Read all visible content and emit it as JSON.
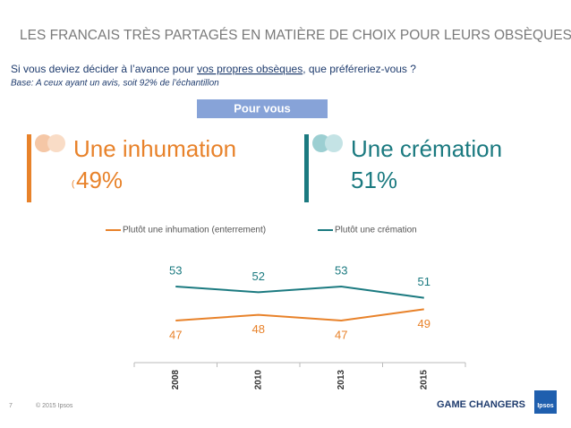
{
  "header": {
    "title": "LES FRANCAIS TRÈS PARTAGÉS EN MATIÈRE DE CHOIX POUR LEURS OBSÈQUES",
    "question": [
      "Si vous deviez décider à l’avance pour ",
      "vos propres obsèques",
      ", que préféreriez-vous ?"
    ],
    "base": "Base: A ceux ayant un avis, soit 92% de l’échantillon"
  },
  "banner": "Pour vous",
  "highlights": [
    {
      "label": "Une inhumation",
      "prefix": "(",
      "value": "49%"
    },
    {
      "label": "Une crémation",
      "value": "51%"
    }
  ],
  "chart_data": {
    "type": "line",
    "categories": [
      "2008",
      "2010",
      "2013",
      "2015"
    ],
    "series": [
      {
        "name": "Plutôt une inhumation (enterrement)",
        "color": "#e8822a",
        "values": [
          47,
          48,
          47,
          49
        ]
      },
      {
        "name": "Plutôt une crémation",
        "color": "#1b7a80",
        "values": [
          53,
          52,
          53,
          51
        ]
      }
    ]
  },
  "footer": {
    "page": "7",
    "copyright": "© 2015 Ipsos",
    "slogan": "GAME CHANGERS",
    "logo": "Ipsos"
  }
}
